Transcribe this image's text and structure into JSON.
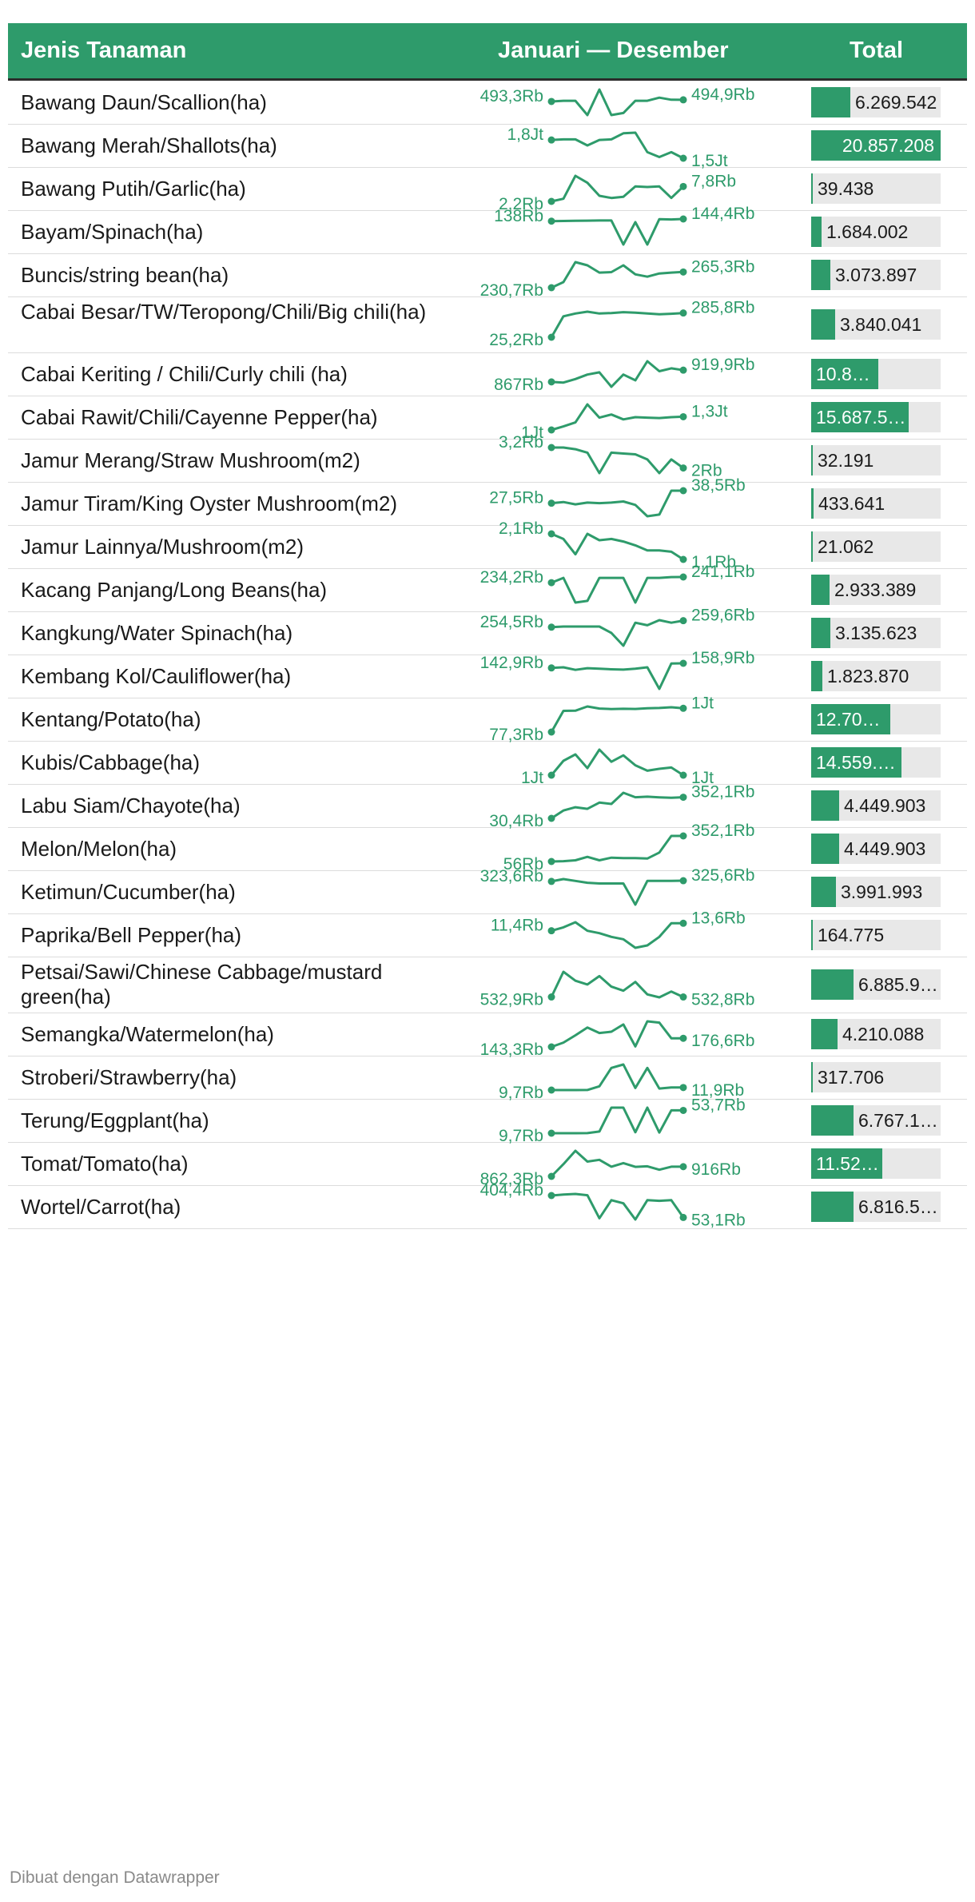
{
  "chart_data": {
    "type": "table",
    "columns": [
      "Jenis Tanaman",
      "Januari — Desember",
      "Total"
    ],
    "rows": [
      {
        "name": "Bawang Daun/Scallion(ha)",
        "first": "493,3Rb",
        "last": "494,9Rb",
        "trend": [
          493.3,
          494,
          494,
          480,
          505,
          480,
          482,
          494,
          494,
          497,
          495,
          494.9
        ],
        "total": 6269542,
        "total_label": "6.269.542"
      },
      {
        "name": "Bawang Merah/Shallots(ha)",
        "first": "1,8Jt",
        "last": "1,5Jt",
        "trend": [
          1.8,
          1.81,
          1.81,
          1.71,
          1.8,
          1.81,
          1.91,
          1.92,
          1.6,
          1.52,
          1.6,
          1.5
        ],
        "total": 20857208,
        "total_label": "20.857.208"
      },
      {
        "name": "Bawang Putih/Garlic(ha)",
        "first": "2,2Rb",
        "last": "7,8Rb",
        "trend": [
          2.2,
          3.2,
          11.8,
          9.2,
          4.3,
          3.5,
          3.9,
          7.8,
          7.6,
          7.8,
          3.5,
          7.8
        ],
        "total": 39438,
        "total_label": "39.438"
      },
      {
        "name": "Bayam/Spinach(ha)",
        "first": "138Rb",
        "last": "144,4Rb",
        "trend": [
          138,
          138.5,
          139,
          139.5,
          140,
          140,
          70,
          135,
          70,
          144,
          143,
          144.4
        ],
        "total": 1684002,
        "total_label": "1.684.002"
      },
      {
        "name": "Buncis/string bean(ha)",
        "first": "230,7Rb",
        "last": "265,3Rb",
        "trend": [
          230.7,
          243,
          287,
          280,
          264,
          265,
          280,
          260,
          255,
          262,
          264,
          265.3
        ],
        "total": 3073897,
        "total_label": "3.073.897"
      },
      {
        "name": "Cabai Besar/TW/Teropong/Chili/Big chili(ha)",
        "first": "25,2Rb",
        "last": "285,8Rb",
        "trend": [
          25.2,
          250,
          280,
          300,
          280,
          285,
          295,
          290,
          280,
          272,
          278,
          285.8
        ],
        "total": 3840041,
        "total_label": "3.840.041"
      },
      {
        "name": "Cabai Keriting / Chili/Curly chili (ha)",
        "first": "867Rb",
        "last": "919,9Rb",
        "trend": [
          867,
          864,
          880,
          900,
          910,
          845,
          900,
          874,
          960,
          915,
          928,
          919.9
        ],
        "total": 10800000,
        "total_label": "10.8…"
      },
      {
        "name": "Cabai Rawit/Chili/Cayenne Pepper(ha)",
        "first": "1Jt",
        "last": "1,3Jt",
        "trend": [
          1.0,
          1.08,
          1.17,
          1.58,
          1.28,
          1.35,
          1.24,
          1.29,
          1.28,
          1.27,
          1.29,
          1.3
        ],
        "total": 15687500,
        "total_label": "15.687.5…"
      },
      {
        "name": "Jamur Merang/Straw Mushroom(m2)",
        "first": "3,2Rb",
        "last": "2Rb",
        "trend": [
          3.2,
          3.2,
          3.1,
          2.9,
          1.7,
          2.9,
          2.85,
          2.8,
          2.5,
          1.7,
          2.5,
          2.0
        ],
        "total": 32191,
        "total_label": "32.191"
      },
      {
        "name": "Jamur Tiram/King Oyster Mushroom(m2)",
        "first": "27,5Rb",
        "last": "38,5Rb",
        "trend": [
          27.5,
          28.5,
          26.5,
          28,
          27.5,
          28,
          29,
          26,
          16,
          17.5,
          38.5,
          38.5
        ],
        "total": 433641,
        "total_label": "433.641"
      },
      {
        "name": "Jamur Lainnya/Mushroom(m2)",
        "first": "2,1Rb",
        "last": "1,1Rb",
        "trend": [
          2.1,
          1.9,
          1.3,
          2.1,
          1.85,
          1.9,
          1.8,
          1.65,
          1.45,
          1.45,
          1.4,
          1.1
        ],
        "total": 21062,
        "total_label": "21.062"
      },
      {
        "name": "Kacang Panjang/Long Beans(ha)",
        "first": "234,2Rb",
        "last": "241,1Rb",
        "trend": [
          234.2,
          240,
          210,
          212,
          240,
          240,
          240,
          210,
          240,
          240,
          241,
          241.1
        ],
        "total": 2933389,
        "total_label": "2.933.389"
      },
      {
        "name": "Kangkung/Water Spinach(ha)",
        "first": "254,5Rb",
        "last": "259,6Rb",
        "trend": [
          254.5,
          255,
          255,
          255,
          255,
          250,
          240,
          258,
          256,
          260,
          258,
          259.6
        ],
        "total": 3135623,
        "total_label": "3.135.623"
      },
      {
        "name": "Kembang Kol/Cauliflower(ha)",
        "first": "142,9Rb",
        "last": "158,9Rb",
        "trend": [
          142.9,
          145,
          136,
          142,
          140,
          138,
          137,
          140,
          145,
          70,
          158,
          158.9
        ],
        "total": 1823870,
        "total_label": "1.823.870"
      },
      {
        "name": "Kentang/Potato(ha)",
        "first": "77,3Rb",
        "last": "1Jt",
        "trend": [
          77.3,
          900,
          905,
          1070,
          990,
          970,
          980,
          975,
          1000,
          1010,
          1040,
          1000
        ],
        "total": 12700000,
        "total_label": "12.70…"
      },
      {
        "name": "Kubis/Cabbage(ha)",
        "first": "1Jt",
        "last": "1Jt",
        "trend": [
          1.0,
          1.45,
          1.65,
          1.22,
          1.8,
          1.42,
          1.62,
          1.31,
          1.14,
          1.2,
          1.24,
          1.0
        ],
        "total": 14559000,
        "total_label": "14.559.…"
      },
      {
        "name": "Labu Siam/Chayote(ha)",
        "first": "30,4Rb",
        "last": "352,1Rb",
        "trend": [
          30.4,
          150,
          200,
          175,
          270,
          250,
          420,
          352,
          360,
          350,
          345,
          352.1
        ],
        "total": 4449903,
        "total_label": "4.449.903"
      },
      {
        "name": "Melon/Melon(ha)",
        "first": "56Rb",
        "last": "352,1Rb",
        "trend": [
          56,
          60,
          70,
          110,
          70,
          100,
          95,
          95,
          90,
          160,
          352,
          352.1
        ],
        "total": 4449903,
        "total_label": "4.449.903"
      },
      {
        "name": "Ketimun/Cucumber(ha)",
        "first": "323,6Rb",
        "last": "325,6Rb",
        "trend": [
          323.6,
          330,
          325,
          320,
          318,
          318,
          318,
          260,
          325,
          325,
          325,
          325.6
        ],
        "total": 3991993,
        "total_label": "3.991.993"
      },
      {
        "name": "Paprika/Bell Pepper(ha)",
        "first": "11,4Rb",
        "last": "13,6Rb",
        "trend": [
          11.4,
          12.4,
          13.9,
          11.4,
          10.7,
          9.6,
          8.9,
          6.4,
          7.1,
          9.6,
          13.6,
          13.6
        ],
        "total": 164775,
        "total_label": "164.775"
      },
      {
        "name": "Petsai/Sawi/Chinese Cabbage/mustard green(ha)",
        "first": "532,9Rb",
        "last": "532,8Rb",
        "trend": [
          532.9,
          662,
          616,
          597,
          640,
          586,
          565,
          610,
          546,
          531,
          561,
          532.8
        ],
        "total": 6885900,
        "total_label": "6.885.9…"
      },
      {
        "name": "Semangka/Watermelon(ha)",
        "first": "143,3Rb",
        "last": "176,6Rb",
        "trend": [
          143.3,
          160,
          188,
          218,
          197,
          202,
          230,
          145,
          242,
          237,
          176.6,
          176.6
        ],
        "total": 4210088,
        "total_label": "4.210.088"
      },
      {
        "name": "Stroberi/Strawberry(ha)",
        "first": "9,7Rb",
        "last": "11,9Rb",
        "trend": [
          9.7,
          9.7,
          9.7,
          9.8,
          13,
          29,
          32,
          11.5,
          29,
          11,
          11.9,
          11.9
        ],
        "total": 317706,
        "total_label": "317.706"
      },
      {
        "name": "Terung/Eggplant(ha)",
        "first": "9,7Rb",
        "last": "53,7Rb",
        "trend": [
          9.7,
          9.7,
          9.7,
          9.8,
          13,
          59,
          59,
          11.5,
          59,
          11,
          53.7,
          53.7
        ],
        "total": 6767100,
        "total_label": "6.767.1…"
      },
      {
        "name": "Tomat/Tomato(ha)",
        "first": "862,3Rb",
        "last": "916Rb",
        "trend": [
          862.3,
          930,
          1004,
          944,
          954,
          916,
          936,
          915,
          918,
          899,
          916,
          916
        ],
        "total": 11520000,
        "total_label": "11.52…"
      },
      {
        "name": "Wortel/Carrot(ha)",
        "first": "404,4Rb",
        "last": "53,1Rb",
        "trend": [
          404.4,
          420,
          430,
          410,
          40,
          330,
          280,
          20,
          330,
          320,
          330,
          53.1
        ],
        "total": 6816500,
        "total_label": "6.816.5…"
      }
    ]
  },
  "header": {
    "col_name": "Jenis Tanaman",
    "col_trend": "Januari — Desember",
    "col_total": "Total"
  },
  "footer": {
    "credit": "Dibuat dengan Datawrapper"
  },
  "colors": {
    "accent": "#2e9b6b",
    "track": "#e8e8e8",
    "header_text": "#ffffff"
  }
}
